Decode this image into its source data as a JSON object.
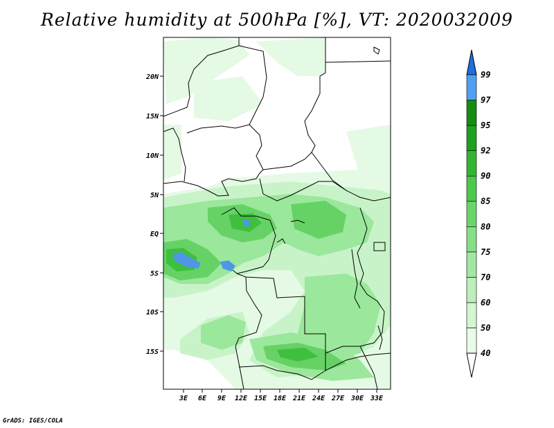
{
  "title": "Relative humidity at 500hPa [%], VT: 2020032009",
  "credit": "GrADS: IGES/COLA",
  "lat_ticks": [
    "20N",
    "15N",
    "10N",
    "5N",
    "EQ",
    "5S",
    "10S",
    "15S"
  ],
  "lon_ticks": [
    "3E",
    "6E",
    "9E",
    "12E",
    "15E",
    "18E",
    "21E",
    "24E",
    "27E",
    "30E",
    "33E"
  ],
  "colorbar": {
    "labels": [
      "40",
      "50",
      "60",
      "70",
      "75",
      "80",
      "85",
      "90",
      "92",
      "95",
      "97",
      "99"
    ],
    "colors": [
      "#ffffff",
      "#e8fbe8",
      "#d3f6d3",
      "#bbefbb",
      "#a2e7a2",
      "#87de87",
      "#6bd56b",
      "#4cc84c",
      "#33b533",
      "#1fa01f",
      "#148c14",
      "#4fa0f0",
      "#1e6fdc"
    ]
  },
  "field_colors": {
    "light": "#e4fae4",
    "pale": "#c8f3c8",
    "mid": "#9be79b",
    "strong": "#66d266",
    "deep": "#3fbf3f",
    "wet": "#4f96e8"
  }
}
